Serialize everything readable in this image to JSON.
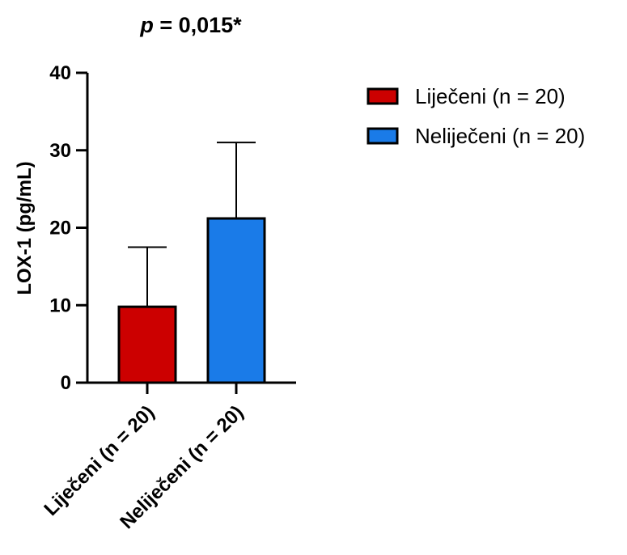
{
  "chart_data": {
    "type": "bar",
    "title_prefix": "p",
    "title_rest": " = 0,015*",
    "xlabel": "",
    "ylabel": "LOX-1 (pg/mL)",
    "ylim": [
      0,
      40
    ],
    "yticks": [
      0,
      10,
      20,
      30,
      40
    ],
    "categories": [
      "Liječeni (n = 20)",
      "Neliječeni (n = 20)"
    ],
    "values": [
      9.8,
      21.2
    ],
    "error_upper": [
      17.5,
      31.0
    ],
    "colors": [
      "#cc0000",
      "#1a7be8"
    ],
    "grid": false,
    "legend_position": "top-right",
    "legend": [
      "Liječeni (n = 20)",
      "Neliječeni (n = 20)"
    ]
  }
}
